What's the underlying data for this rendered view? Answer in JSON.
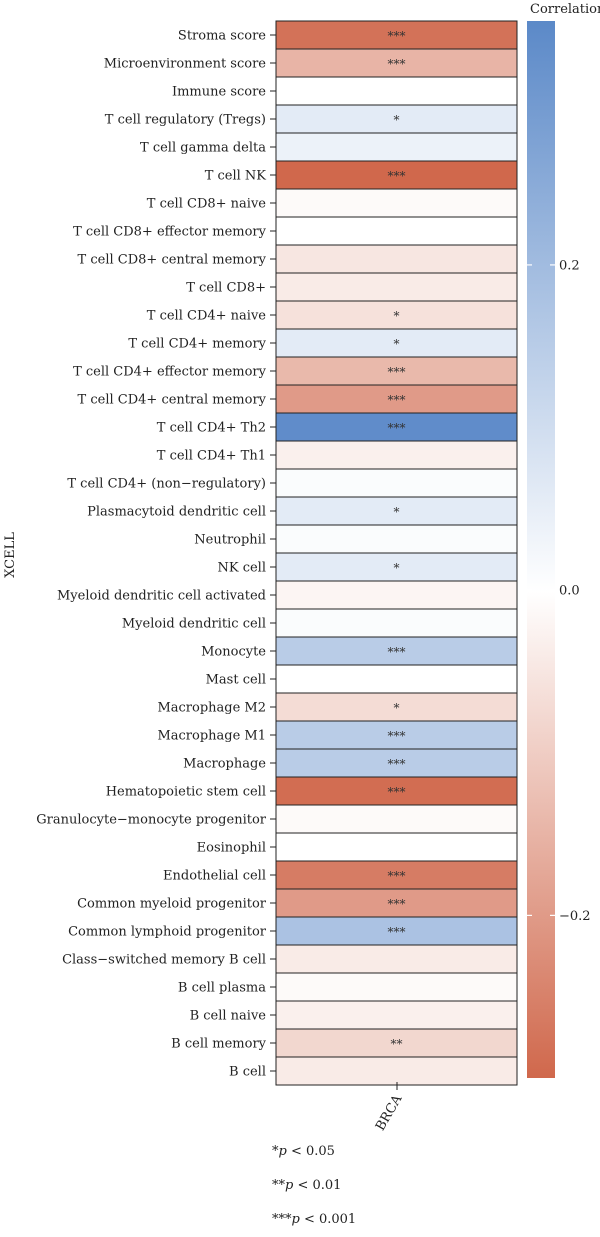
{
  "chart_data": {
    "type": "heatmap",
    "ylabel": "XCELL",
    "columns": [
      "BRCA"
    ],
    "legend_title": "Correlation",
    "colorbar_ticks": [
      0.2,
      0.0,
      -0.2
    ],
    "colorbar_tick_labels": [
      "0.2",
      "0.0",
      "−0.2"
    ],
    "color_range": [
      -0.3,
      0.35
    ],
    "colors": {
      "negative": "#d0684c",
      "zero": "#ffffff",
      "positive": "#5b89c8"
    },
    "rows": [
      {
        "label": "Stroma score",
        "value": -0.28,
        "sig": "***"
      },
      {
        "label": "Microenvironment score",
        "value": -0.15,
        "sig": "***"
      },
      {
        "label": "Immune score",
        "value": 0.0,
        "sig": ""
      },
      {
        "label": "T cell regulatory (Tregs)",
        "value": 0.06,
        "sig": "*"
      },
      {
        "label": "T cell gamma delta",
        "value": 0.04,
        "sig": ""
      },
      {
        "label": "T cell NK",
        "value": -0.3,
        "sig": "***"
      },
      {
        "label": "T cell CD8+ naive",
        "value": -0.01,
        "sig": ""
      },
      {
        "label": "T cell CD8+ effector memory",
        "value": 0.0,
        "sig": ""
      },
      {
        "label": "T cell CD8+ central memory",
        "value": -0.05,
        "sig": ""
      },
      {
        "label": "T cell CD8+",
        "value": -0.04,
        "sig": ""
      },
      {
        "label": "T cell CD4+ naive",
        "value": -0.06,
        "sig": "*"
      },
      {
        "label": "T cell CD4+ memory",
        "value": 0.06,
        "sig": "*"
      },
      {
        "label": "T cell CD4+ effector memory",
        "value": -0.14,
        "sig": "***"
      },
      {
        "label": "T cell CD4+ central memory",
        "value": -0.2,
        "sig": "***"
      },
      {
        "label": "T cell CD4+ Th2",
        "value": 0.34,
        "sig": "***"
      },
      {
        "label": "T cell CD4+ Th1",
        "value": -0.03,
        "sig": ""
      },
      {
        "label": "T cell CD4+ (non−regulatory)",
        "value": 0.01,
        "sig": ""
      },
      {
        "label": "Plasmacytoid dendritic cell",
        "value": 0.06,
        "sig": "*"
      },
      {
        "label": "Neutrophil",
        "value": 0.01,
        "sig": ""
      },
      {
        "label": "NK cell",
        "value": 0.06,
        "sig": "*"
      },
      {
        "label": "Myeloid dendritic cell activated",
        "value": -0.02,
        "sig": ""
      },
      {
        "label": "Myeloid dendritic cell",
        "value": 0.01,
        "sig": ""
      },
      {
        "label": "Monocyte",
        "value": 0.15,
        "sig": "***"
      },
      {
        "label": "Mast cell",
        "value": 0.0,
        "sig": ""
      },
      {
        "label": "Macrophage M2",
        "value": -0.07,
        "sig": "*"
      },
      {
        "label": "Macrophage M1",
        "value": 0.15,
        "sig": "***"
      },
      {
        "label": "Macrophage",
        "value": 0.15,
        "sig": "***"
      },
      {
        "label": "Hematopoietic stem cell",
        "value": -0.29,
        "sig": "***"
      },
      {
        "label": "Granulocyte−monocyte progenitor",
        "value": -0.01,
        "sig": ""
      },
      {
        "label": "Eosinophil",
        "value": 0.0,
        "sig": ""
      },
      {
        "label": "Endothelial cell",
        "value": -0.26,
        "sig": "***"
      },
      {
        "label": "Common myeloid progenitor",
        "value": -0.2,
        "sig": "***"
      },
      {
        "label": "Common lymphoid progenitor",
        "value": 0.18,
        "sig": "***"
      },
      {
        "label": "Class−switched memory B cell",
        "value": -0.04,
        "sig": ""
      },
      {
        "label": "B cell plasma",
        "value": -0.01,
        "sig": ""
      },
      {
        "label": "B cell naive",
        "value": -0.03,
        "sig": ""
      },
      {
        "label": "B cell memory",
        "value": -0.08,
        "sig": "**"
      },
      {
        "label": "B cell",
        "value": -0.04,
        "sig": ""
      }
    ]
  },
  "notes": [
    {
      "stars": "*",
      "p": "p",
      "text": " < 0.05"
    },
    {
      "stars": "**",
      "p": "p",
      "text": " < 0.01"
    },
    {
      "stars": "***",
      "p": "p",
      "text": " < 0.001"
    }
  ]
}
